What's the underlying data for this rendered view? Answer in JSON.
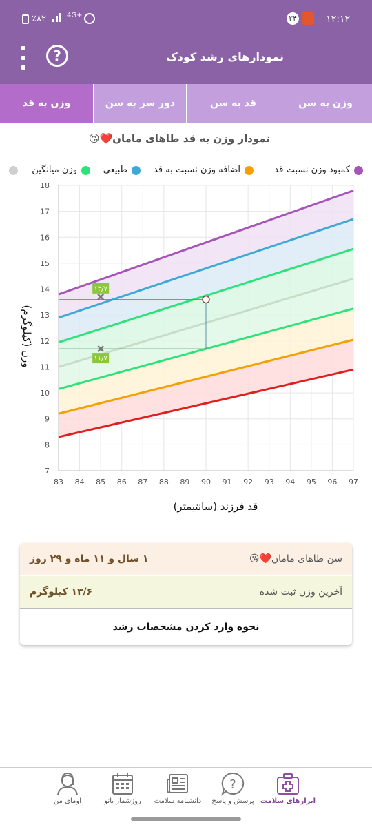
{
  "status_bar": {
    "time": "۱۲:۱۲",
    "notification_badge": "۲۴",
    "battery": "٪۸۲",
    "network": "4G+"
  },
  "app_bar": {
    "title": "نمودارهای رشد کودک",
    "help_symbol": "?",
    "menu_icon": "more-vert-icon"
  },
  "tabs": [
    {
      "label": "وزن به سن",
      "active": false
    },
    {
      "label": "قد به سن",
      "active": false
    },
    {
      "label": "دور سر به سن",
      "active": false
    },
    {
      "label": "وزن به قد",
      "active": true
    }
  ],
  "chart_title": "نمودار وزن به قد طاهای مامان❤️😘",
  "legend": [
    {
      "label": "کمبود وزن نسبت قد",
      "color": "#a654b8"
    },
    {
      "label": "اضافه وزن نسبت به قد",
      "color": "#f5a000"
    },
    {
      "label": "طبیعی",
      "color": "#3fa9d6"
    },
    {
      "label": "وزن میانگین",
      "color": "#2ee27a"
    },
    {
      "label": "",
      "color": "#cfcfcf"
    }
  ],
  "chart_data": {
    "type": "area",
    "xlabel": "قد فرزند (سانتیمتر)",
    "ylabel": "وزن (کیلوگرم)",
    "xlim": [
      83,
      97
    ],
    "ylim": [
      7,
      18
    ],
    "x_ticks": [
      "83",
      "84",
      "85",
      "86",
      "87",
      "88",
      "89",
      "90",
      "91",
      "92",
      "93",
      "94",
      "95",
      "96",
      "97"
    ],
    "y_ticks": [
      "7",
      "8",
      "9",
      "10",
      "11",
      "12",
      "13",
      "14",
      "15",
      "16",
      "17",
      "18"
    ],
    "grid": true,
    "curves": [
      {
        "color": "#a654b8",
        "x": [
          83,
          97
        ],
        "y": [
          13.8,
          17.8
        ],
        "fill": "#efe0f4"
      },
      {
        "color": "#3fa9d6",
        "x": [
          83,
          97
        ],
        "y": [
          12.9,
          16.7
        ],
        "fill": "#dcebf7"
      },
      {
        "color": "#2ee27a",
        "x": [
          83,
          97
        ],
        "y": [
          11.95,
          15.55
        ],
        "fill": "#d9f7e4"
      },
      {
        "color": "#c8dcc8",
        "x": [
          83,
          97
        ],
        "y": [
          11.0,
          14.4
        ],
        "fill": "#e0f8e8"
      },
      {
        "color": "#2ee27a",
        "x": [
          83,
          97
        ],
        "y": [
          10.15,
          13.25
        ],
        "fill": "#fff3d6"
      },
      {
        "color": "#f5a000",
        "x": [
          83,
          97
        ],
        "y": [
          9.2,
          12.05
        ],
        "fill": "#ffdcdc"
      },
      {
        "color": "#e02020",
        "x": [
          83,
          97
        ],
        "y": [
          8.3,
          10.9
        ],
        "fill": null
      }
    ],
    "data_point": {
      "x": 90,
      "y": 13.6
    },
    "reference_marks": [
      {
        "x": 85,
        "y": 13.7,
        "label": "۱۳/۷"
      },
      {
        "x": 85,
        "y": 11.7,
        "label": "۱۱/۷"
      }
    ]
  },
  "info_card": {
    "age_label": "سن طاهای مامان❤️😘",
    "age_value": "۱ سال و ۱۱ ماه و ۲۹ روز",
    "weight_label": "آخرین وزن ثبت شده",
    "weight_value": "۱۳/۶ کیلوگرم",
    "howto_button": "نحوه وارد کردن مشخصات رشد"
  },
  "bottom_nav": [
    {
      "label": "ابزارهای سلامت",
      "icon": "medical-kit-icon",
      "active": true
    },
    {
      "label": "پرسش و پاسخ",
      "icon": "question-bubble-icon",
      "active": false
    },
    {
      "label": "دانشنامه سلامت",
      "icon": "newspaper-icon",
      "active": false
    },
    {
      "label": "روزشمار بانو",
      "icon": "calendar-icon",
      "active": false
    },
    {
      "label": "اومای من",
      "icon": "profile-icon",
      "active": false
    }
  ]
}
